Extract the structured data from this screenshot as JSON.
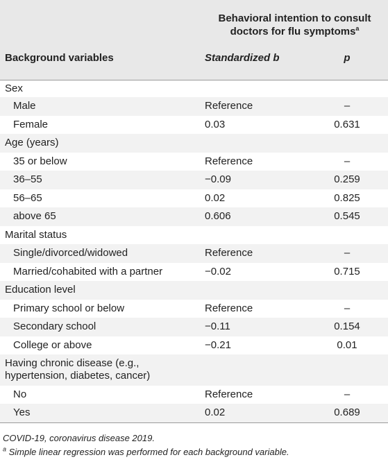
{
  "header": {
    "group_title_line1": "Behavioral intention to consult",
    "group_title_line2": "doctors for flu symptoms",
    "group_title_sup": "a",
    "col_variables": "Background variables",
    "col_b": "Standardized b",
    "col_p": "p"
  },
  "rows": [
    {
      "label": "Sex",
      "b": "",
      "p": ""
    },
    {
      "label": "Male",
      "b": "Reference",
      "p": "–"
    },
    {
      "label": "Female",
      "b": "0.03",
      "p": "0.631"
    },
    {
      "label": "Age (years)",
      "b": "",
      "p": ""
    },
    {
      "label": "35 or below",
      "b": "Reference",
      "p": "–"
    },
    {
      "label": "36–55",
      "b": "−0.09",
      "p": "0.259"
    },
    {
      "label": "56–65",
      "b": "0.02",
      "p": "0.825"
    },
    {
      "label": "above 65",
      "b": "0.606",
      "p": "0.545"
    },
    {
      "label": "Marital status",
      "b": "",
      "p": ""
    },
    {
      "label": "Single/divorced/widowed",
      "b": "Reference",
      "p": "–"
    },
    {
      "label": "Married/cohabited with a partner",
      "b": "−0.02",
      "p": "0.715"
    },
    {
      "label": "Education level",
      "b": "",
      "p": ""
    },
    {
      "label": "Primary school or below",
      "b": "Reference",
      "p": "–"
    },
    {
      "label": "Secondary school",
      "b": "−0.11",
      "p": "0.154"
    },
    {
      "label": "College or above",
      "b": "−0.21",
      "p": "0.01"
    },
    {
      "label": "Having chronic disease (e.g.,",
      "label2": "hypertension, diabetes, cancer)",
      "b": "",
      "p": ""
    },
    {
      "label": "No",
      "b": "Reference",
      "p": "–"
    },
    {
      "label": "Yes",
      "b": "0.02",
      "p": "0.689"
    }
  ],
  "footnotes": {
    "abbrev": "COVID-19, coronavirus disease 2019.",
    "note_marker": "a",
    "note_text": " Simple linear regression was performed for each background variable."
  }
}
